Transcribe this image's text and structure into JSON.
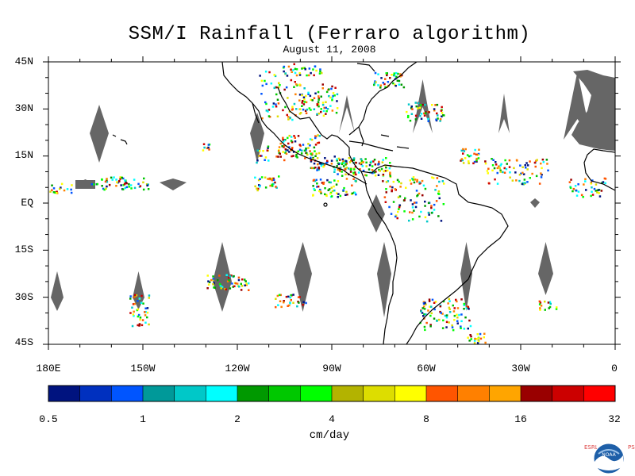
{
  "title": "SSM/I Rainfall (Ferraro algorithm)",
  "date": "August 11, 2008",
  "y_axis_labels": [
    "45N",
    "30N",
    "15N",
    "EQ",
    "15S",
    "30S",
    "45S"
  ],
  "x_axis_labels": [
    "180E",
    "150W",
    "120W",
    "90W",
    "60W",
    "30W",
    "0"
  ],
  "colorbar": {
    "tick_labels": [
      "0.5",
      "1",
      "2",
      "4",
      "8",
      "16",
      "32"
    ],
    "units": "cm/day",
    "colors": [
      "#00137f",
      "#0030bf",
      "#0055ff",
      "#009999",
      "#00c8c8",
      "#00ffff",
      "#009900",
      "#00c800",
      "#00ff00",
      "#b3b300",
      "#dddd00",
      "#ffff00",
      "#ff5500",
      "#ff8000",
      "#ffa500",
      "#990000",
      "#cc0000",
      "#ff0000"
    ]
  },
  "colors": {
    "swath_gap": "#666666",
    "coastline": "#000000"
  },
  "logo": {
    "left": "ESRL",
    "right": "PSD",
    "center": "NOAA"
  }
}
